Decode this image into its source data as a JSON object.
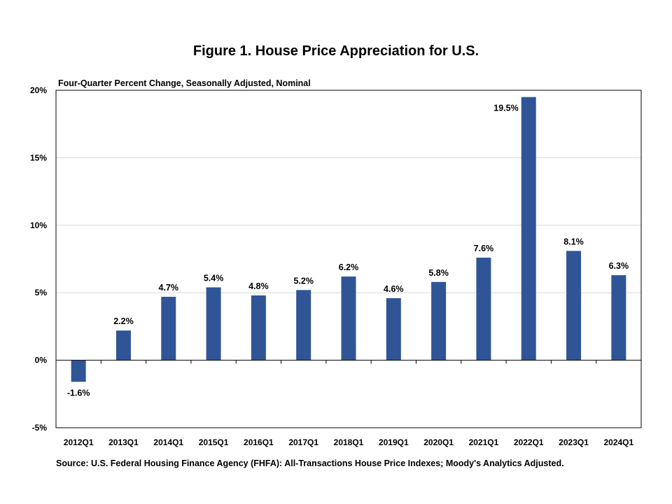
{
  "chart_data": {
    "type": "bar",
    "title": "Figure 1. House Price Appreciation for U.S.",
    "subtitle": "Four-Quarter Percent Change, Seasonally Adjusted, Nominal",
    "source": "Source: U.S. Federal Housing Finance Agency (FHFA): All-Transactions House Price Indexes; Moody's Analytics Adjusted.",
    "categories": [
      "2012Q1",
      "2013Q1",
      "2014Q1",
      "2015Q1",
      "2016Q1",
      "2017Q1",
      "2018Q1",
      "2019Q1",
      "2020Q1",
      "2021Q1",
      "2022Q1",
      "2023Q1",
      "2024Q1"
    ],
    "values": [
      -1.6,
      2.2,
      4.7,
      5.4,
      4.8,
      5.2,
      6.2,
      4.6,
      5.8,
      7.6,
      19.5,
      8.1,
      6.3
    ],
    "data_labels": [
      "-1.6%",
      "2.2%",
      "4.7%",
      "5.4%",
      "4.8%",
      "5.2%",
      "6.2%",
      "4.6%",
      "5.8%",
      "7.6%",
      "19.5%",
      "8.1%",
      "6.3%"
    ],
    "yticks": [
      -5,
      0,
      5,
      10,
      15,
      20
    ],
    "ytick_labels": [
      "-5%",
      "0%",
      "5%",
      "10%",
      "15%",
      "20%"
    ],
    "ylim": [
      -5,
      20
    ],
    "grid": true,
    "legend": false,
    "bar_color": "#2F5597"
  }
}
